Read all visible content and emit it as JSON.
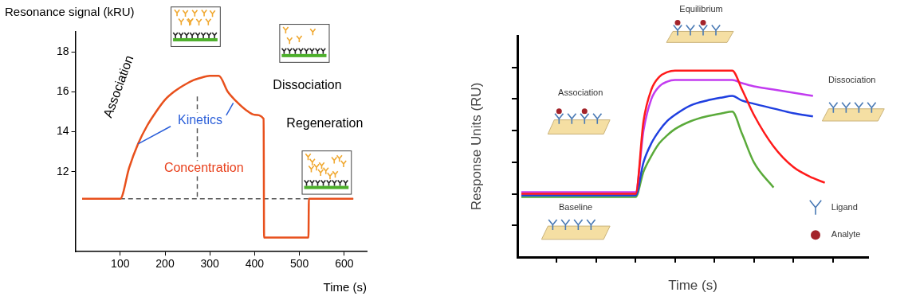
{
  "chart_data": [
    {
      "type": "line",
      "y_label": "Resonance signal (kRU)",
      "x_label": "Time (s)",
      "xlim": [
        0,
        650
      ],
      "xticks": [
        100,
        200,
        300,
        400,
        500,
        600
      ],
      "ylim": [
        8,
        19
      ],
      "yticks": [
        12,
        14,
        16,
        18
      ],
      "grid": false,
      "series": [
        {
          "color": "#e8501c",
          "line_style": "solid",
          "x": [
            15,
            100,
            120,
            140,
            160,
            180,
            200,
            220,
            240,
            260,
            280,
            300,
            320,
            340,
            360,
            380,
            400,
            420,
            421,
            520,
            521,
            620
          ],
          "values": [
            10.65,
            10.65,
            12.2,
            13.4,
            14.3,
            15.0,
            15.6,
            16.0,
            16.3,
            16.55,
            16.7,
            16.8,
            16.8,
            16.0,
            15.5,
            15.1,
            14.85,
            14.65,
            8.7,
            8.7,
            10.65,
            10.65
          ]
        },
        {
          "color": "#555555",
          "line_style": "dashed",
          "x": [
            100,
            620
          ],
          "values": [
            10.65,
            10.65
          ]
        },
        {
          "color": "#555555",
          "line_style": "dashed",
          "x": [
            272,
            272
          ],
          "values": [
            10.75,
            15.9
          ]
        }
      ],
      "annotations": [
        {
          "text": "Association",
          "color": "#000000"
        },
        {
          "text": "Kinetics",
          "color": "#2b5fd9"
        },
        {
          "text": "Concentration",
          "color": "#e8401c"
        },
        {
          "text": "Dissociation",
          "color": "#000000"
        },
        {
          "text": "Regeneration",
          "color": "#000000"
        }
      ]
    },
    {
      "type": "line",
      "y_label": "Response Units (RU)",
      "x_label": "Time (s)",
      "xlim": [
        0,
        8.9
      ],
      "xticks": [
        1,
        2,
        3,
        4,
        5,
        6,
        7,
        8
      ],
      "ylim": [
        0,
        7
      ],
      "yticks": [
        1,
        2,
        3,
        4,
        5,
        6
      ],
      "grid": false,
      "tick_labels": false,
      "series": [
        {
          "color": "#ff1a1a",
          "line_style": "solid",
          "x": [
            0.1,
            3,
            3.2,
            3.4,
            3.6,
            3.8,
            4.0,
            4.4,
            4.8,
            5.2,
            5.45,
            5.7,
            6.0,
            6.5,
            7.0,
            7.5,
            7.8
          ],
          "values": [
            2.0,
            2.0,
            4.3,
            5.3,
            5.7,
            5.85,
            5.9,
            5.9,
            5.9,
            5.9,
            5.9,
            5.3,
            4.5,
            3.5,
            2.85,
            2.5,
            2.35
          ]
        },
        {
          "color": "#c23cf0",
          "line_style": "solid",
          "x": [
            0.1,
            3,
            3.2,
            3.4,
            3.6,
            3.8,
            4.0,
            4.4,
            4.8,
            5.2,
            5.45,
            5.7,
            6.0,
            6.5,
            7.0,
            7.5
          ],
          "values": [
            2.05,
            2.05,
            4.0,
            5.0,
            5.4,
            5.55,
            5.6,
            5.6,
            5.6,
            5.6,
            5.6,
            5.5,
            5.4,
            5.3,
            5.2,
            5.1
          ]
        },
        {
          "color": "#1f3fe0",
          "line_style": "solid",
          "x": [
            0.1,
            3,
            3.2,
            3.4,
            3.6,
            3.8,
            4.0,
            4.4,
            4.8,
            5.2,
            5.45,
            5.7,
            6.0,
            6.5,
            7.0,
            7.5
          ],
          "values": [
            1.95,
            1.95,
            3.0,
            3.6,
            4.0,
            4.3,
            4.5,
            4.8,
            4.95,
            5.05,
            5.1,
            4.95,
            4.85,
            4.7,
            4.55,
            4.45
          ]
        },
        {
          "color": "#5aaa3a",
          "line_style": "solid",
          "x": [
            0.1,
            3,
            3.2,
            3.4,
            3.6,
            3.8,
            4.0,
            4.4,
            4.8,
            5.2,
            5.45,
            5.7,
            6.0,
            6.5
          ],
          "values": [
            1.9,
            1.9,
            2.7,
            3.2,
            3.6,
            3.85,
            4.05,
            4.3,
            4.45,
            4.55,
            4.6,
            3.9,
            3.0,
            2.2
          ]
        }
      ],
      "annotations": [
        {
          "text": "Association",
          "color": "#333333"
        },
        {
          "text": "Equilibrium",
          "color": "#333333"
        },
        {
          "text": "Dissociation",
          "color": "#333333"
        },
        {
          "text": "Baseline",
          "color": "#333333"
        },
        {
          "text": "Ligand",
          "color": "#333333"
        },
        {
          "text": "Analyte",
          "color": "#333333"
        }
      ]
    }
  ]
}
